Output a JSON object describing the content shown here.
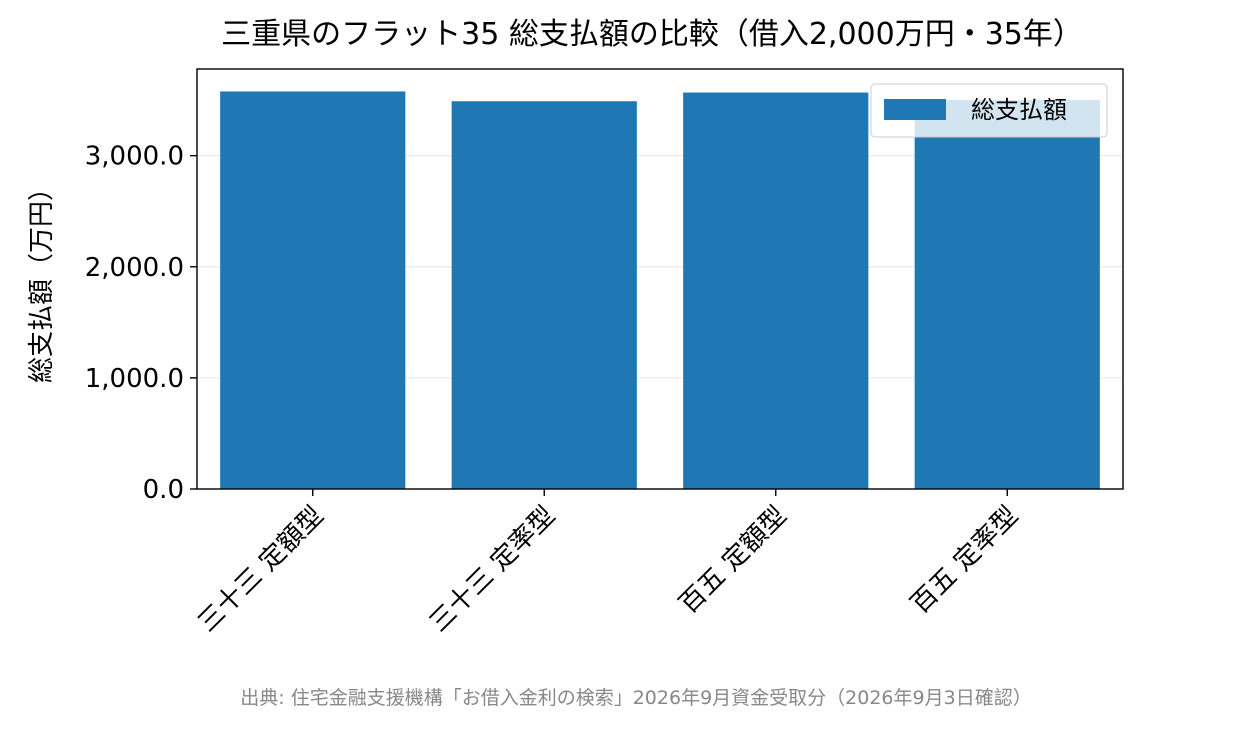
{
  "chart_data": {
    "type": "bar",
    "title": "三重県のフラット35 総支払額の比較（借入2,000万円・35年）",
    "xlabel": "",
    "ylabel": "総支払額（万円）",
    "categories": [
      "三十三 定額型",
      "三十三 定率型",
      "百五 定額型",
      "百五 定率型"
    ],
    "series": [
      {
        "name": "総支払額",
        "values": [
          3578,
          3490,
          3568,
          3500
        ]
      }
    ],
    "ylim": [
      0,
      3780
    ],
    "yticks": [
      0,
      1000,
      2000,
      3000
    ],
    "ytick_labels": [
      "0.0",
      "1,000.0",
      "2,000.0",
      "3,000.0"
    ],
    "grid": true,
    "legend_position": "top-right",
    "bar_color": "#1f77b4",
    "source_note": "出典: 住宅金融支援機構「お借入金利の検索」2026年9月資金受取分（2026年9月3日確認）"
  }
}
